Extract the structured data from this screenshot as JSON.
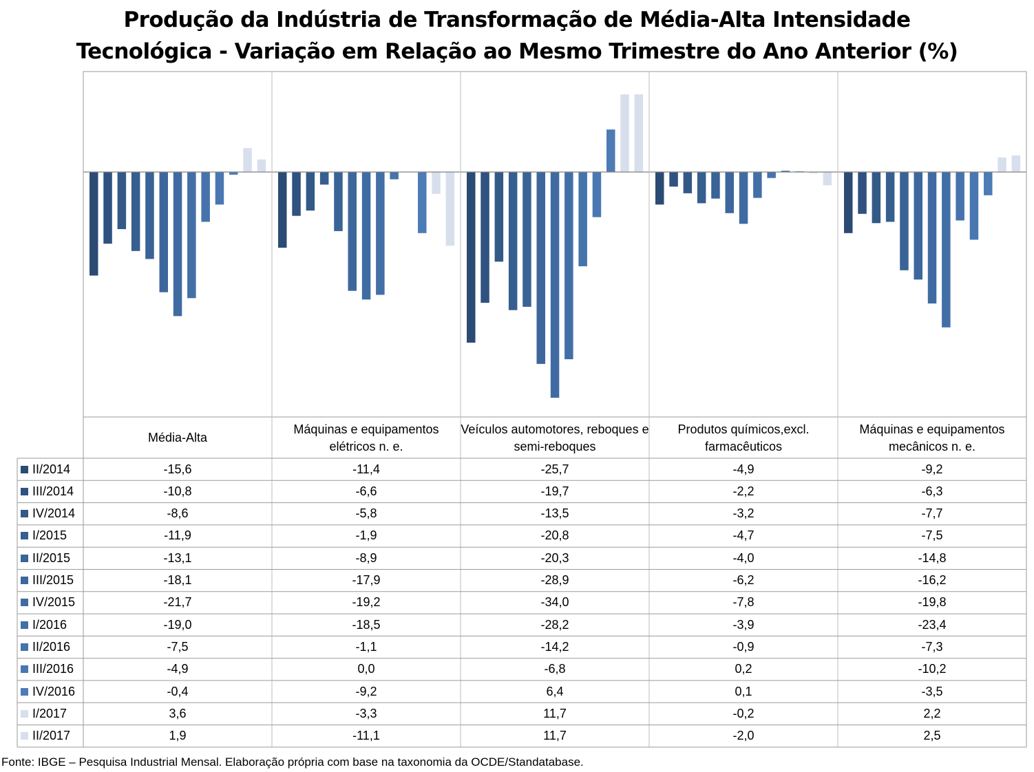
{
  "chart_data": {
    "type": "bar",
    "title_lines": [
      "Produção da Indústria de Transformação de Média-Alta Intensidade",
      "Tecnológica - Variação em Relação ao Mesmo Trimestre do Ano Anterior (%)"
    ],
    "categories": [
      "Média-Alta",
      "Máquinas e equipamentos elétricos n. e.",
      "Veículos automotores, reboques e semi-reboques",
      "Produtos químicos,excl. farmacêuticos",
      "Máquinas e equipamentos mecânicos  n. e."
    ],
    "series": [
      {
        "name": "II/2014",
        "color": "#2b4b74",
        "values": [
          -15.6,
          -11.4,
          -25.7,
          -4.9,
          -9.2
        ]
      },
      {
        "name": "III/2014",
        "color": "#2f5280",
        "values": [
          -10.8,
          -6.6,
          -19.7,
          -2.2,
          -6.3
        ]
      },
      {
        "name": "IV/2014",
        "color": "#335987",
        "values": [
          -8.6,
          -5.8,
          -13.5,
          -3.2,
          -7.7
        ]
      },
      {
        "name": "I/2015",
        "color": "#365e8f",
        "values": [
          -11.9,
          -1.9,
          -20.8,
          -4.7,
          -7.5
        ]
      },
      {
        "name": "II/2015",
        "color": "#3a6396",
        "values": [
          -13.1,
          -8.9,
          -20.3,
          -4.0,
          -14.8
        ]
      },
      {
        "name": "III/2015",
        "color": "#3d679c",
        "values": [
          -18.1,
          -17.9,
          -28.9,
          -6.2,
          -16.2
        ]
      },
      {
        "name": "IV/2015",
        "color": "#406ba2",
        "values": [
          -21.7,
          -19.2,
          -34.0,
          -7.8,
          -19.8
        ]
      },
      {
        "name": "I/2016",
        "color": "#436fa7",
        "values": [
          -19.0,
          -18.5,
          -28.2,
          -3.9,
          -23.4
        ]
      },
      {
        "name": "II/2016",
        "color": "#4673ac",
        "values": [
          -7.5,
          -1.1,
          -14.2,
          -0.9,
          -7.3
        ]
      },
      {
        "name": "III/2016",
        "color": "#4a77b1",
        "values": [
          -4.9,
          0.0,
          -6.8,
          0.2,
          -10.2
        ]
      },
      {
        "name": "IV/2016",
        "color": "#4d7bb6",
        "values": [
          -0.4,
          -9.2,
          6.4,
          0.1,
          -3.5
        ]
      },
      {
        "name": "I/2017",
        "color": "#d8dfec",
        "values": [
          3.6,
          -3.3,
          11.7,
          -0.2,
          2.2
        ]
      },
      {
        "name": "II/2017",
        "color": "#d8dfec",
        "values": [
          1.9,
          -11.1,
          11.7,
          -2.0,
          2.5
        ]
      }
    ],
    "table_values": [
      [
        "-15,6",
        "-11,4",
        "-25,7",
        "-4,9",
        "-9,2"
      ],
      [
        "-10,8",
        "-6,6",
        "-19,7",
        "-2,2",
        "-6,3"
      ],
      [
        "-8,6",
        "-5,8",
        "-13,5",
        "-3,2",
        "-7,7"
      ],
      [
        "-11,9",
        "-1,9",
        "-20,8",
        "-4,7",
        "-7,5"
      ],
      [
        "-13,1",
        "-8,9",
        "-20,3",
        "-4,0",
        "-14,8"
      ],
      [
        "-18,1",
        "-17,9",
        "-28,9",
        "-6,2",
        "-16,2"
      ],
      [
        "-21,7",
        "-19,2",
        "-34,0",
        "-7,8",
        "-19,8"
      ],
      [
        "-19,0",
        "-18,5",
        "-28,2",
        "-3,9",
        "-23,4"
      ],
      [
        "-7,5",
        "-1,1",
        "-14,2",
        "-0,9",
        "-7,3"
      ],
      [
        "-4,9",
        "0,0",
        "-6,8",
        "0,2",
        "-10,2"
      ],
      [
        "-0,4",
        "-9,2",
        "6,4",
        "0,1",
        "-3,5"
      ],
      [
        "3,6",
        "-3,3",
        "11,7",
        "-0,2",
        "2,2"
      ],
      [
        "1,9",
        "-11,1",
        "11,7",
        "-2,0",
        "2,5"
      ]
    ],
    "ylim": [
      -37,
      15
    ],
    "gridlines": false,
    "legend": "data-table"
  },
  "source": "Fonte: IBGE – Pesquisa Industrial Mensal. Elaboração própria com base na taxonomia da OCDE/Standatabase."
}
